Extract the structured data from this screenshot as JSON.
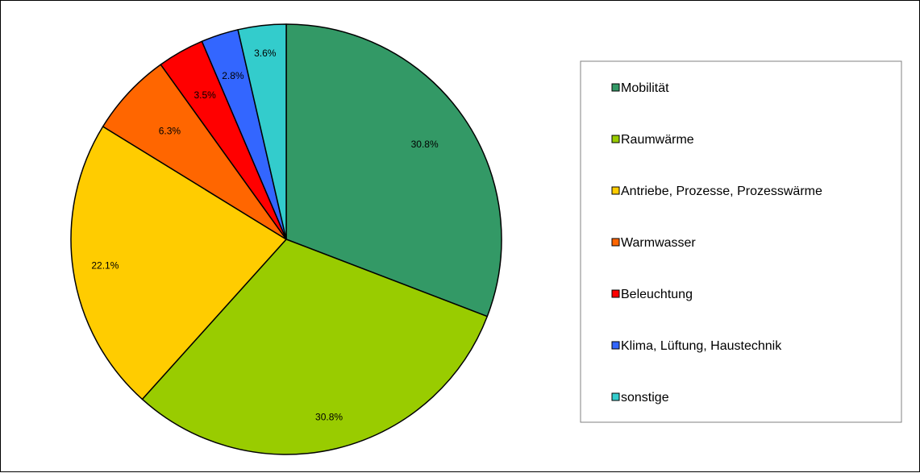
{
  "chart_data": {
    "type": "pie",
    "categories": [
      "Mobilität",
      "Raumwärme",
      "Antriebe, Prozesse, Prozesswärme",
      "Warmwasser",
      "Beleuchtung",
      "Klima, Lüftung, Haustechnik",
      "sonstige"
    ],
    "values": [
      30.8,
      30.8,
      22.1,
      6.3,
      3.5,
      2.8,
      3.6
    ],
    "labels": [
      "30.8%",
      "30.8%",
      "22.1%",
      "6.3%",
      "3.5%",
      "2.8%",
      "3.6%"
    ],
    "colors": [
      "#339966",
      "#99CC00",
      "#FFCC00",
      "#FF6600",
      "#FF0000",
      "#3366FF",
      "#33CCCC"
    ],
    "start_position": "top",
    "direction": "clockwise",
    "legend_position": "right",
    "title": ""
  }
}
